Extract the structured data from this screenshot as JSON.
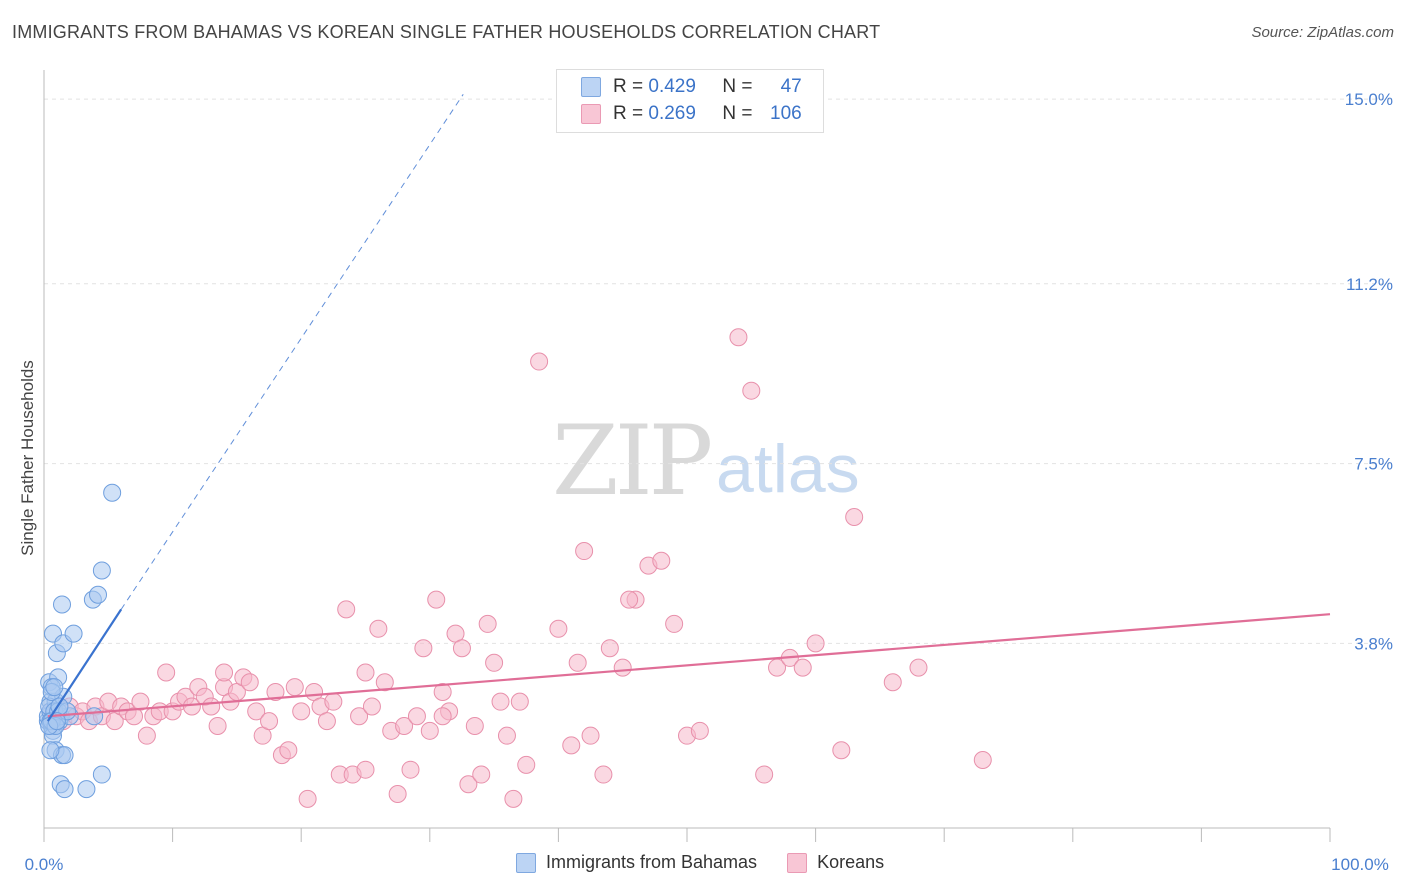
{
  "header": {
    "title": "IMMIGRANTS FROM BAHAMAS VS KOREAN SINGLE FATHER HOUSEHOLDS CORRELATION CHART",
    "source": "Source: ZipAtlas.com"
  },
  "watermark": {
    "part1": "ZIP",
    "part2": "atlas"
  },
  "legend": {
    "rows": [
      {
        "r_label": "R = ",
        "r_value": "0.429",
        "n_label": "N = ",
        "n_value": "47"
      },
      {
        "r_label": "R = ",
        "r_value": "0.269",
        "n_label": "N = ",
        "n_value": "106"
      }
    ]
  },
  "colors": {
    "blue_fill": "#aac8f0",
    "blue_stroke": "#6f9fde",
    "blue_line": "#3a73cf",
    "pink_fill": "#f5b8cb",
    "pink_stroke": "#e890ab",
    "pink_line": "#e06e97",
    "grid": "#e2e2e2",
    "axis_label": "#4a7fcf"
  },
  "chart_data": {
    "type": "scatter",
    "title": "IMMIGRANTS FROM BAHAMAS VS KOREAN SINGLE FATHER HOUSEHOLDS CORRELATION CHART",
    "xlabel": "",
    "ylabel": "Single Father Households",
    "xlim": [
      0,
      100
    ],
    "ylim": [
      0,
      15.6
    ],
    "y_ticks": [
      3.8,
      7.5,
      11.2,
      15.0
    ],
    "y_tick_labels": [
      "3.8%",
      "7.5%",
      "11.2%",
      "15.0%"
    ],
    "x_tick_labels": [
      "0.0%",
      "100.0%"
    ],
    "series": [
      {
        "name": "Immigrants from Bahamas",
        "color": "#aac8f0",
        "R": 0.429,
        "N": 47,
        "trend": {
          "solid": [
            [
              0.3,
              2.2
            ],
            [
              6.0,
              4.5
            ]
          ],
          "dashed": [
            [
              6.0,
              4.5
            ],
            [
              32.6,
              15.1
            ]
          ]
        },
        "points": [
          [
            0.3,
            2.2
          ],
          [
            0.5,
            2.6
          ],
          [
            0.4,
            3.0
          ],
          [
            0.6,
            2.1
          ],
          [
            0.8,
            2.3
          ],
          [
            1.0,
            2.2
          ],
          [
            0.7,
            2.0
          ],
          [
            0.3,
            2.3
          ],
          [
            0.5,
            2.4
          ],
          [
            1.2,
            2.2
          ],
          [
            0.9,
            2.6
          ],
          [
            1.1,
            3.1
          ],
          [
            0.6,
            2.9
          ],
          [
            0.4,
            2.5
          ],
          [
            0.7,
            1.9
          ],
          [
            1.3,
            2.3
          ],
          [
            0.5,
            2.2
          ],
          [
            0.8,
            2.4
          ],
          [
            1.5,
            2.7
          ],
          [
            0.6,
            2.2
          ],
          [
            0.9,
            1.6
          ],
          [
            1.4,
            1.5
          ],
          [
            1.6,
            1.5
          ],
          [
            0.7,
            4.0
          ],
          [
            1.0,
            3.6
          ],
          [
            1.5,
            3.8
          ],
          [
            2.3,
            4.0
          ],
          [
            1.4,
            4.6
          ],
          [
            3.8,
            4.7
          ],
          [
            4.2,
            4.8
          ],
          [
            4.5,
            5.3
          ],
          [
            5.3,
            6.9
          ],
          [
            1.3,
            0.9
          ],
          [
            1.6,
            0.8
          ],
          [
            3.3,
            0.8
          ],
          [
            4.5,
            1.1
          ],
          [
            2.0,
            2.3
          ],
          [
            1.1,
            2.4
          ],
          [
            0.6,
            2.8
          ],
          [
            0.9,
            2.1
          ],
          [
            1.8,
            2.4
          ],
          [
            0.4,
            2.1
          ],
          [
            1.2,
            2.5
          ],
          [
            3.9,
            2.3
          ],
          [
            0.5,
            1.6
          ],
          [
            0.8,
            2.9
          ],
          [
            1.0,
            2.2
          ]
        ]
      },
      {
        "name": "Koreans",
        "color": "#f5b8cb",
        "R": 0.269,
        "N": 106,
        "trend": {
          "solid": [
            [
              0.3,
              2.3
            ],
            [
              100,
              4.4
            ]
          ]
        },
        "points": [
          [
            0.5,
            2.4
          ],
          [
            1.0,
            2.3
          ],
          [
            1.5,
            2.2
          ],
          [
            2.0,
            2.5
          ],
          [
            2.5,
            2.3
          ],
          [
            3.0,
            2.4
          ],
          [
            3.5,
            2.2
          ],
          [
            4.0,
            2.5
          ],
          [
            4.5,
            2.3
          ],
          [
            5.0,
            2.6
          ],
          [
            5.5,
            2.2
          ],
          [
            6.0,
            2.5
          ],
          [
            6.5,
            2.4
          ],
          [
            7.0,
            2.3
          ],
          [
            7.5,
            2.6
          ],
          [
            8.0,
            1.9
          ],
          [
            8.5,
            2.3
          ],
          [
            9.0,
            2.4
          ],
          [
            9.5,
            3.2
          ],
          [
            10.0,
            2.4
          ],
          [
            10.5,
            2.6
          ],
          [
            11.0,
            2.7
          ],
          [
            11.5,
            2.5
          ],
          [
            12.0,
            2.9
          ],
          [
            12.5,
            2.7
          ],
          [
            13.0,
            2.5
          ],
          [
            13.5,
            2.1
          ],
          [
            14.0,
            2.9
          ],
          [
            14.5,
            2.6
          ],
          [
            15.0,
            2.8
          ],
          [
            15.5,
            3.1
          ],
          [
            16.0,
            3.0
          ],
          [
            16.5,
            2.4
          ],
          [
            17.0,
            1.9
          ],
          [
            17.5,
            2.2
          ],
          [
            18.0,
            2.8
          ],
          [
            18.5,
            1.5
          ],
          [
            19.0,
            1.6
          ],
          [
            19.5,
            2.9
          ],
          [
            20.0,
            2.4
          ],
          [
            20.5,
            0.6
          ],
          [
            21.0,
            2.8
          ],
          [
            21.5,
            2.5
          ],
          [
            22.0,
            2.2
          ],
          [
            22.5,
            2.6
          ],
          [
            23.0,
            1.1
          ],
          [
            23.5,
            4.5
          ],
          [
            24.0,
            1.1
          ],
          [
            24.5,
            2.3
          ],
          [
            25.0,
            3.2
          ],
          [
            25.5,
            2.5
          ],
          [
            26.0,
            4.1
          ],
          [
            26.5,
            3.0
          ],
          [
            27.0,
            2.0
          ],
          [
            27.5,
            0.7
          ],
          [
            28.0,
            2.1
          ],
          [
            28.5,
            1.2
          ],
          [
            29.0,
            2.3
          ],
          [
            29.5,
            3.7
          ],
          [
            30.0,
            2.0
          ],
          [
            30.5,
            4.7
          ],
          [
            31.0,
            2.8
          ],
          [
            31.5,
            2.4
          ],
          [
            32.0,
            4.0
          ],
          [
            32.5,
            3.7
          ],
          [
            33.0,
            0.9
          ],
          [
            33.5,
            2.1
          ],
          [
            34.0,
            1.1
          ],
          [
            34.5,
            4.2
          ],
          [
            35.0,
            3.4
          ],
          [
            35.5,
            2.6
          ],
          [
            36.0,
            1.9
          ],
          [
            36.5,
            0.6
          ],
          [
            37.0,
            2.6
          ],
          [
            38.5,
            9.6
          ],
          [
            40.0,
            4.1
          ],
          [
            41.0,
            1.7
          ],
          [
            41.5,
            3.4
          ],
          [
            42.0,
            5.7
          ],
          [
            42.5,
            1.9
          ],
          [
            44.0,
            3.7
          ],
          [
            45.0,
            3.3
          ],
          [
            46.0,
            4.7
          ],
          [
            47.0,
            5.4
          ],
          [
            48.0,
            5.5
          ],
          [
            49.0,
            4.2
          ],
          [
            50.0,
            1.9
          ],
          [
            51.0,
            2.0
          ],
          [
            54.0,
            10.1
          ],
          [
            55.0,
            9.0
          ],
          [
            56.0,
            1.1
          ],
          [
            57.0,
            3.3
          ],
          [
            58.0,
            3.5
          ],
          [
            59.0,
            3.3
          ],
          [
            60.0,
            3.8
          ],
          [
            62.0,
            1.6
          ],
          [
            63.0,
            6.4
          ],
          [
            66.0,
            3.0
          ],
          [
            68.0,
            3.3
          ],
          [
            73.0,
            1.4
          ],
          [
            45.5,
            4.7
          ],
          [
            43.5,
            1.1
          ],
          [
            37.5,
            1.3
          ],
          [
            31.0,
            2.3
          ],
          [
            25.0,
            1.2
          ],
          [
            14.0,
            3.2
          ]
        ]
      }
    ]
  },
  "bottom_legend": {
    "items": [
      {
        "label": "Immigrants from Bahamas"
      },
      {
        "label": "Koreans"
      }
    ]
  }
}
